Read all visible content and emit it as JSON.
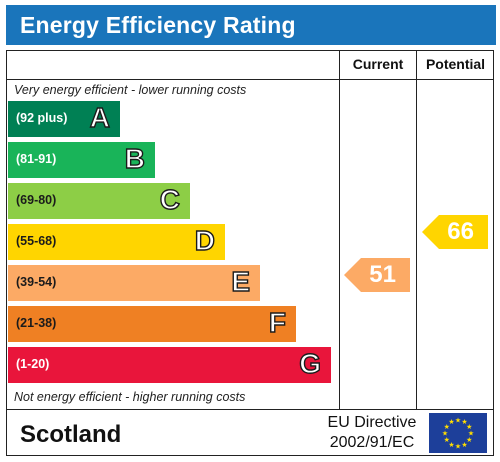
{
  "title": "Energy Efficiency Rating",
  "headers": {
    "current": "Current",
    "potential": "Potential"
  },
  "top_caption": "Very energy efficient - lower running costs",
  "bottom_caption": "Not energy efficient - higher running costs",
  "bands": [
    {
      "range": "(92 plus)",
      "letter": "A",
      "color": "#008054"
    },
    {
      "range": "(81-91)",
      "letter": "B",
      "color": "#19b459"
    },
    {
      "range": "(69-80)",
      "letter": "C",
      "color": "#8dce46"
    },
    {
      "range": "(55-68)",
      "letter": "D",
      "color": "#ffd500"
    },
    {
      "range": "(39-54)",
      "letter": "E",
      "color": "#fcaa65"
    },
    {
      "range": "(21-38)",
      "letter": "F",
      "color": "#ef8023"
    },
    {
      "range": "(1-20)",
      "letter": "G",
      "color": "#e9153b"
    }
  ],
  "current": {
    "value": "51",
    "band": "E",
    "color": "#fcaa65"
  },
  "potential": {
    "value": "66",
    "band": "D",
    "color": "#ffd500"
  },
  "footer": {
    "region": "Scotland",
    "directive_line1": "EU Directive",
    "directive_line2": "2002/91/EC"
  },
  "icons": {
    "eu_flag": "eu-flag-icon"
  }
}
